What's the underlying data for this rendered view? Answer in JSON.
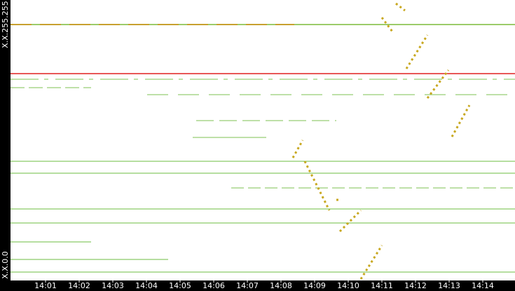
{
  "y_axis": {
    "top_label": "X.X.255.255",
    "bottom_label": "X.X.0.0"
  },
  "x_axis": {
    "ticks": [
      "14:01",
      "14:02",
      "14:03",
      "14:04",
      "14:05",
      "14:06",
      "14:07",
      "14:08",
      "14:09",
      "14:10",
      "14:11",
      "14:12",
      "14:13",
      "14:14"
    ]
  }
}
